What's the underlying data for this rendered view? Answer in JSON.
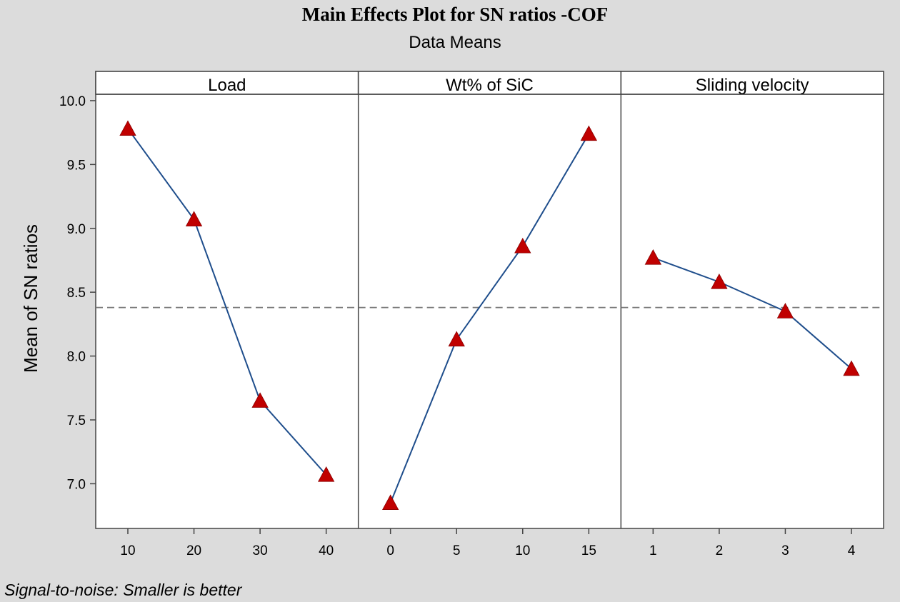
{
  "chart_data": {
    "type": "line",
    "title": "Main Effects Plot for SN ratios -COF",
    "subtitle": "Data Means",
    "ylabel": "Mean of SN ratios",
    "ylim": [
      6.65,
      10.05
    ],
    "yticks": [
      "10.0",
      "9.5",
      "9.0",
      "8.5",
      "8.0",
      "7.5",
      "7.0"
    ],
    "reference_line": 8.38,
    "grid": false,
    "marker": "triangle",
    "line_color": "#1f4e8c",
    "marker_color": "#c00000",
    "footnote": "Signal-to-noise: Smaller is better",
    "panels": [
      {
        "name": "Load",
        "categories": [
          "10",
          "20",
          "30",
          "40"
        ],
        "values": [
          9.78,
          9.07,
          7.65,
          7.07
        ]
      },
      {
        "name": "Wt% of SiC",
        "categories": [
          "0",
          "5",
          "10",
          "15"
        ],
        "values": [
          6.85,
          8.13,
          8.86,
          9.74
        ]
      },
      {
        "name": "Sliding velocity",
        "categories": [
          "1",
          "2",
          "3",
          "4"
        ],
        "values": [
          8.77,
          8.58,
          8.35,
          7.9
        ]
      }
    ]
  }
}
